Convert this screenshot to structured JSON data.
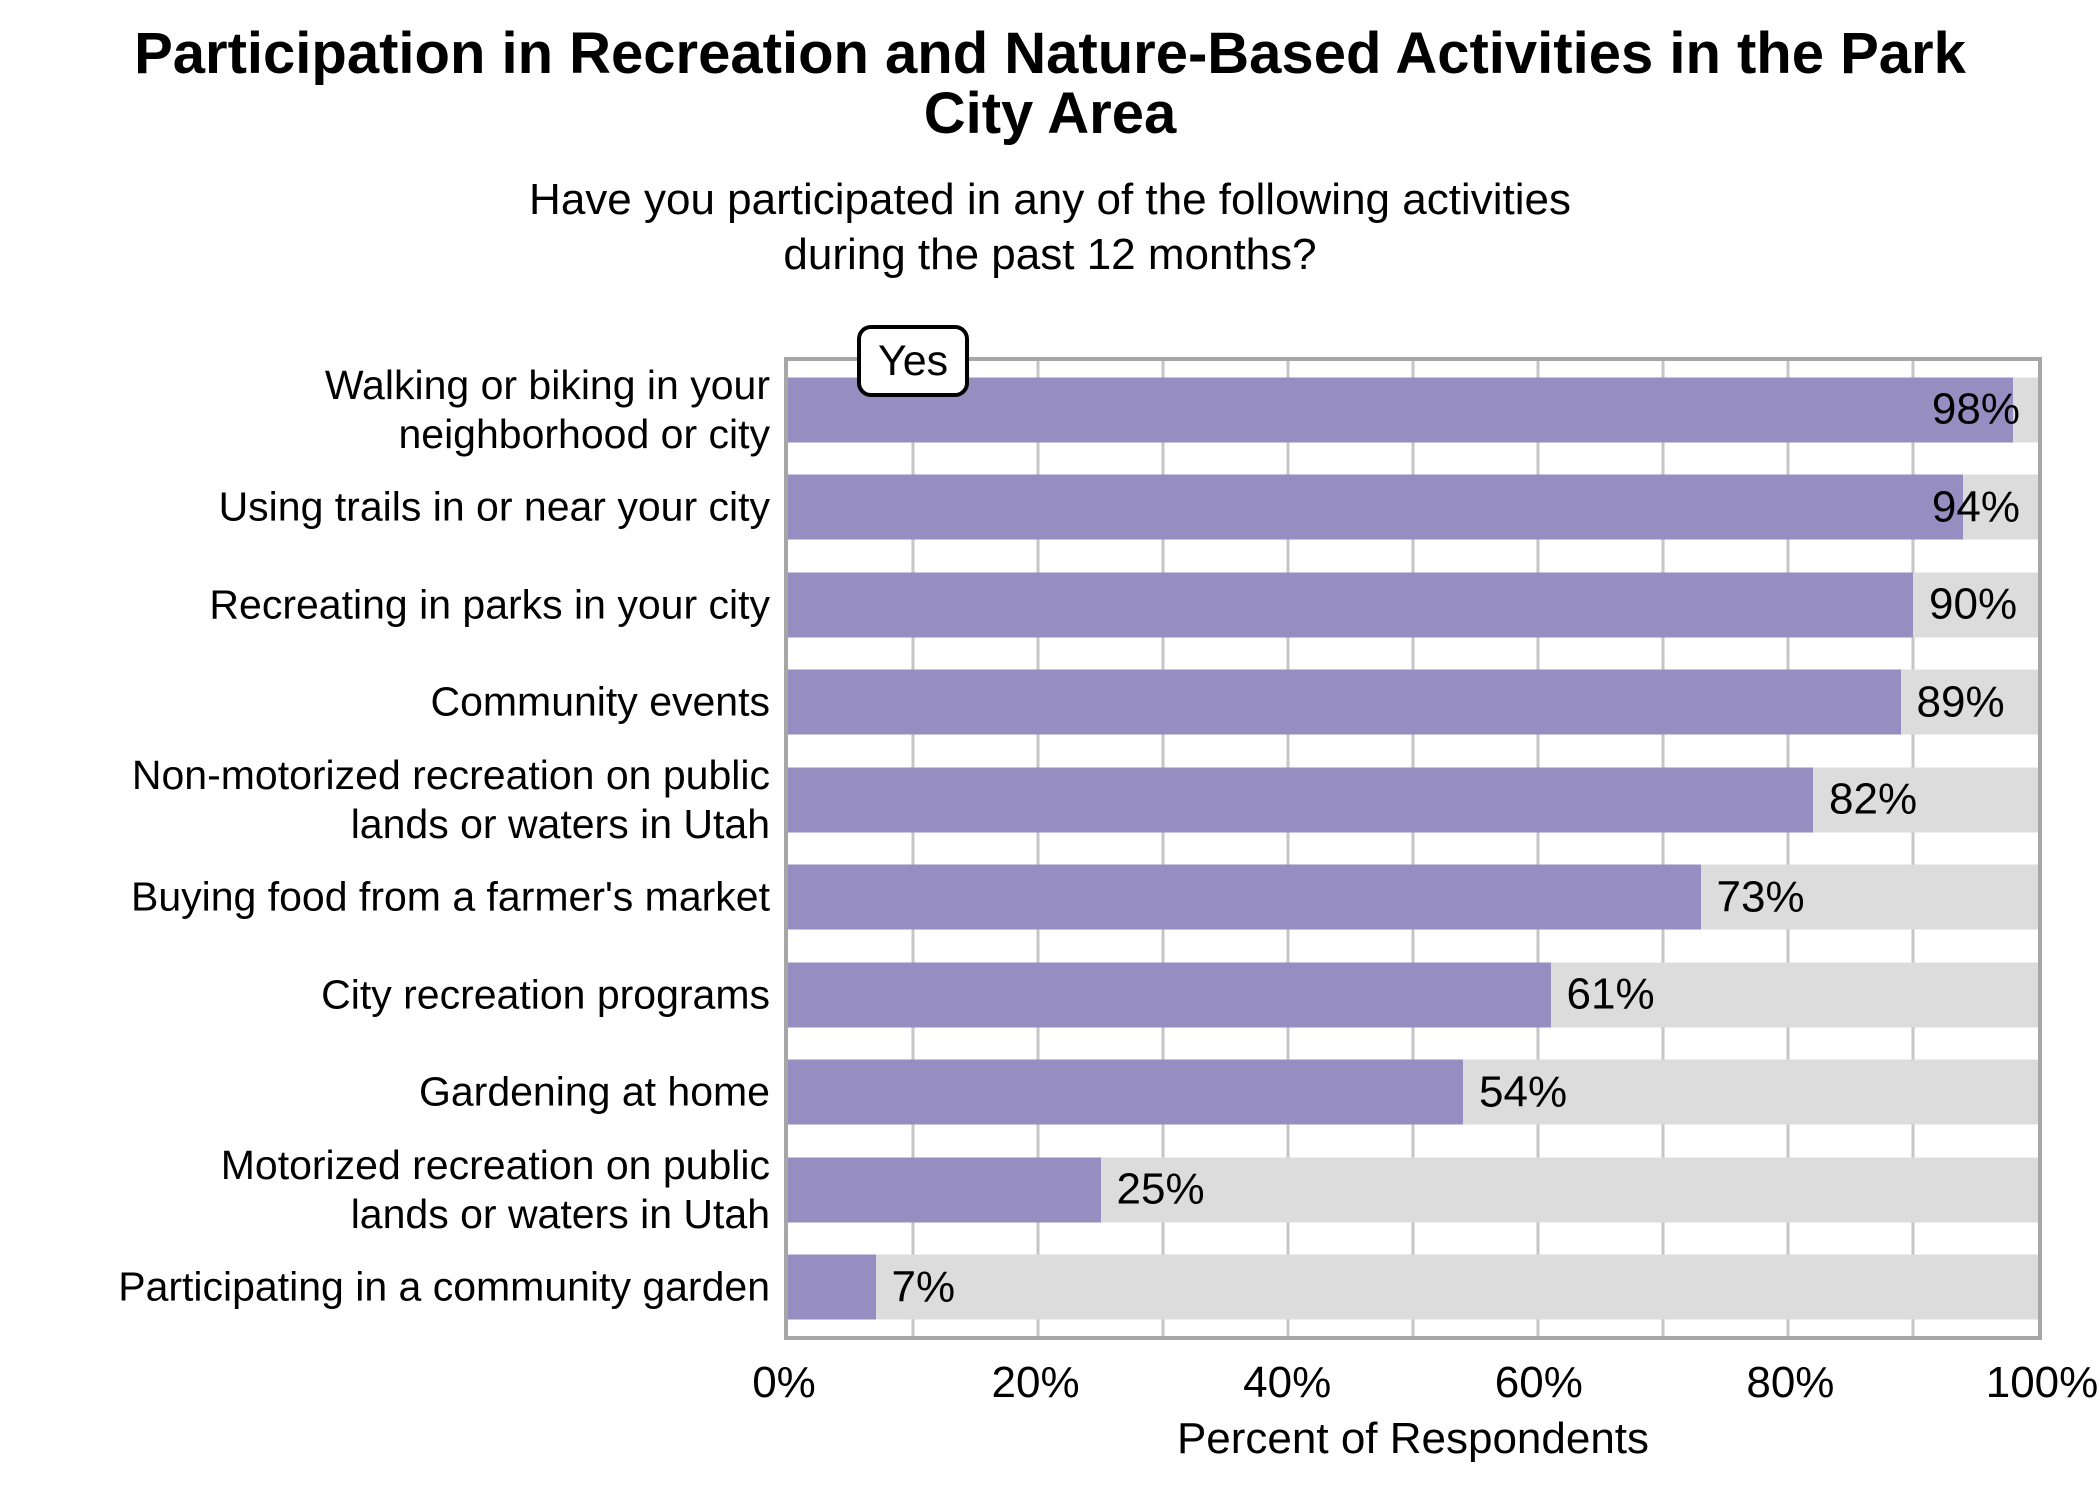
{
  "title_lines": [
    "Participation in Recreation and Nature-Based Activities in the Park",
    "City Area"
  ],
  "subtitle_lines": [
    "Have you participated in any of the following activities",
    "during the past 12 months?"
  ],
  "legend_label": "Yes",
  "chart_data": {
    "type": "bar",
    "orientation": "horizontal",
    "title": "Participation in Recreation and Nature-Based Activities in the Park City Area",
    "subtitle": "Have you participated in any of the following activities during the past 12 months?",
    "xlabel": "Percent of Respondents",
    "legend": [
      "Yes"
    ],
    "legend_position": "top-left-inside",
    "grid": "vertical, every 10%",
    "xlim": [
      0,
      100
    ],
    "categories": [
      "Walking or biking in your\nneighborhood or city",
      "Using trails in or near your city",
      "Recreating in parks in your city",
      "Community events",
      "Non-motorized recreation on public\nlands or waters in Utah",
      "Buying food from a farmer's market",
      "City recreation programs",
      "Gardening at home",
      "Motorized recreation on public\nlands or waters in Utah",
      "Participating in a community garden"
    ],
    "values": [
      98,
      94,
      90,
      89,
      82,
      73,
      61,
      54,
      25,
      7
    ],
    "value_labels": [
      "98%",
      "94%",
      "90%",
      "89%",
      "82%",
      "73%",
      "61%",
      "54%",
      "25%",
      "7%"
    ],
    "x_ticks": [
      {
        "label": "0%",
        "value": 0
      },
      {
        "label": "20%",
        "value": 20
      },
      {
        "label": "40%",
        "value": 40
      },
      {
        "label": "60%",
        "value": 60
      },
      {
        "label": "80%",
        "value": 80
      },
      {
        "label": "100%",
        "value": 100
      }
    ],
    "colors": {
      "bar": "#968EC0",
      "track": "#DCDCDC",
      "gridline": "#C6C6C6",
      "panel_border": "#A6A6A6",
      "text": "#000000",
      "background": "#FFFFFF"
    }
  }
}
